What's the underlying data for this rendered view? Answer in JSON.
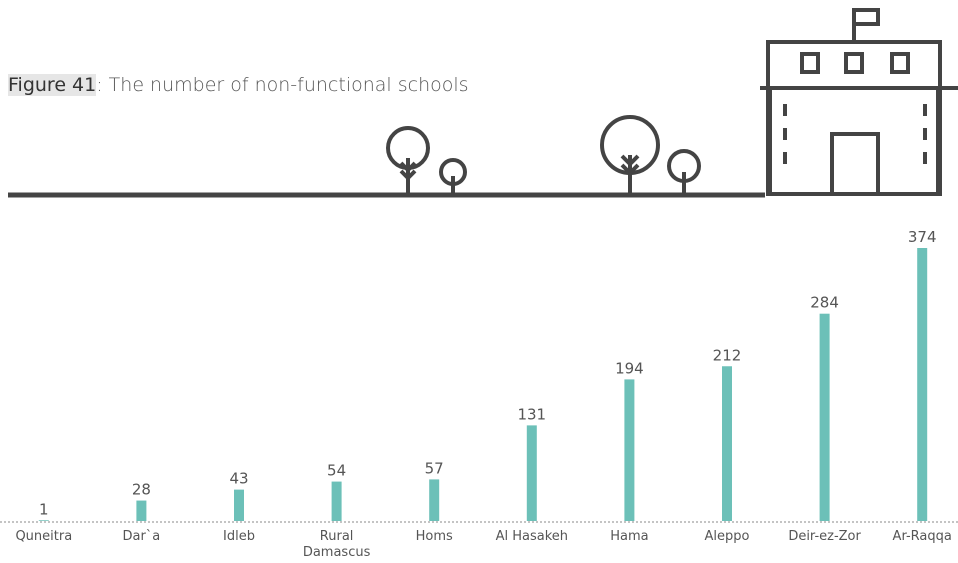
{
  "chart_data": {
    "type": "bar",
    "title_prefix": "Figure 41",
    "title": ": The number of non-functional schools",
    "categories": [
      "Quneitra",
      "Dar`a",
      "Idleb",
      "Rural\nDamascus",
      "Homs",
      "Al Hasakeh",
      "Hama",
      "Aleppo",
      "Deir-ez-Zor",
      "Ar-Raqqa"
    ],
    "values": [
      1,
      28,
      43,
      54,
      57,
      131,
      194,
      212,
      284,
      374
    ],
    "color": "#6cc0b8"
  }
}
